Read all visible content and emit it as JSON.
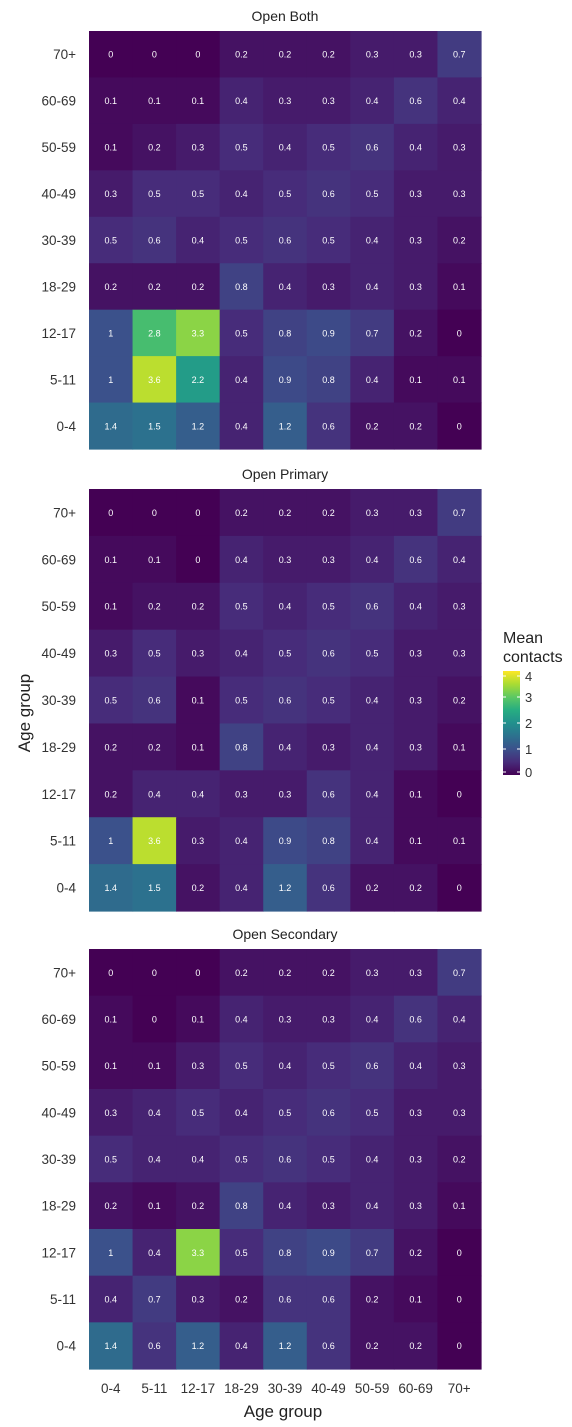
{
  "chart_data": {
    "type": "heatmap",
    "x_categories": [
      "0-4",
      "5-11",
      "12-17",
      "18-29",
      "30-39",
      "40-49",
      "50-59",
      "60-69",
      "70+"
    ],
    "y_categories": [
      "0-4",
      "5-11",
      "12-17",
      "18-29",
      "30-39",
      "40-49",
      "50-59",
      "60-69",
      "70+"
    ],
    "xlabel": "Age group",
    "ylabel": "Age group",
    "legend": {
      "title_lines": [
        "Mean",
        "contacts"
      ],
      "ticks": [
        0,
        1,
        2,
        3,
        4
      ],
      "range": [
        0,
        4
      ],
      "colormap": "viridis",
      "placement": "right"
    },
    "panels": [
      {
        "title": "Open Both",
        "rows": [
          {
            "age": "70+",
            "values": [
              0,
              0,
              0,
              0.2,
              0.2,
              0.2,
              0.3,
              0.3,
              0.7
            ]
          },
          {
            "age": "60-69",
            "values": [
              0.1,
              0.1,
              0.1,
              0.4,
              0.3,
              0.3,
              0.4,
              0.6,
              0.4
            ]
          },
          {
            "age": "50-59",
            "values": [
              0.1,
              0.2,
              0.3,
              0.5,
              0.4,
              0.5,
              0.6,
              0.4,
              0.3
            ]
          },
          {
            "age": "40-49",
            "values": [
              0.3,
              0.5,
              0.5,
              0.4,
              0.5,
              0.6,
              0.5,
              0.3,
              0.3
            ]
          },
          {
            "age": "30-39",
            "values": [
              0.5,
              0.6,
              0.4,
              0.5,
              0.6,
              0.5,
              0.4,
              0.3,
              0.2
            ]
          },
          {
            "age": "18-29",
            "values": [
              0.2,
              0.2,
              0.2,
              0.8,
              0.4,
              0.3,
              0.4,
              0.3,
              0.1
            ]
          },
          {
            "age": "12-17",
            "values": [
              1,
              2.8,
              3.3,
              0.5,
              0.8,
              0.9,
              0.7,
              0.2,
              0
            ]
          },
          {
            "age": "5-11",
            "values": [
              1,
              3.6,
              2.2,
              0.4,
              0.9,
              0.8,
              0.4,
              0.1,
              0.1
            ]
          },
          {
            "age": "0-4",
            "values": [
              1.4,
              1.5,
              1.2,
              0.4,
              1.2,
              0.6,
              0.2,
              0.2,
              0
            ]
          }
        ]
      },
      {
        "title": "Open Primary",
        "rows": [
          {
            "age": "70+",
            "values": [
              0,
              0,
              0,
              0.2,
              0.2,
              0.2,
              0.3,
              0.3,
              0.7
            ]
          },
          {
            "age": "60-69",
            "values": [
              0.1,
              0.1,
              0,
              0.4,
              0.3,
              0.3,
              0.4,
              0.6,
              0.4
            ]
          },
          {
            "age": "50-59",
            "values": [
              0.1,
              0.2,
              0.2,
              0.5,
              0.4,
              0.5,
              0.6,
              0.4,
              0.3
            ]
          },
          {
            "age": "40-49",
            "values": [
              0.3,
              0.5,
              0.3,
              0.4,
              0.5,
              0.6,
              0.5,
              0.3,
              0.3
            ]
          },
          {
            "age": "30-39",
            "values": [
              0.5,
              0.6,
              0.1,
              0.5,
              0.6,
              0.5,
              0.4,
              0.3,
              0.2
            ]
          },
          {
            "age": "18-29",
            "values": [
              0.2,
              0.2,
              0.1,
              0.8,
              0.4,
              0.3,
              0.4,
              0.3,
              0.1
            ]
          },
          {
            "age": "12-17",
            "values": [
              0.2,
              0.4,
              0.4,
              0.3,
              0.3,
              0.6,
              0.4,
              0.1,
              0
            ]
          },
          {
            "age": "5-11",
            "values": [
              1,
              3.6,
              0.3,
              0.4,
              0.9,
              0.8,
              0.4,
              0.1,
              0.1
            ]
          },
          {
            "age": "0-4",
            "values": [
              1.4,
              1.5,
              0.2,
              0.4,
              1.2,
              0.6,
              0.2,
              0.2,
              0
            ]
          }
        ]
      },
      {
        "title": "Open Secondary",
        "rows": [
          {
            "age": "70+",
            "values": [
              0,
              0,
              0,
              0.2,
              0.2,
              0.2,
              0.3,
              0.3,
              0.7
            ]
          },
          {
            "age": "60-69",
            "values": [
              0.1,
              0,
              0.1,
              0.4,
              0.3,
              0.3,
              0.4,
              0.6,
              0.4
            ]
          },
          {
            "age": "50-59",
            "values": [
              0.1,
              0.1,
              0.3,
              0.5,
              0.4,
              0.5,
              0.6,
              0.4,
              0.3
            ]
          },
          {
            "age": "40-49",
            "values": [
              0.3,
              0.4,
              0.5,
              0.4,
              0.5,
              0.6,
              0.5,
              0.3,
              0.3
            ]
          },
          {
            "age": "30-39",
            "values": [
              0.5,
              0.4,
              0.4,
              0.5,
              0.6,
              0.5,
              0.4,
              0.3,
              0.2
            ]
          },
          {
            "age": "18-29",
            "values": [
              0.2,
              0.1,
              0.2,
              0.8,
              0.4,
              0.3,
              0.4,
              0.3,
              0.1
            ]
          },
          {
            "age": "12-17",
            "values": [
              1,
              0.4,
              3.3,
              0.5,
              0.8,
              0.9,
              0.7,
              0.2,
              0
            ]
          },
          {
            "age": "5-11",
            "values": [
              0.4,
              0.7,
              0.3,
              0.2,
              0.6,
              0.6,
              0.2,
              0.1,
              0
            ]
          },
          {
            "age": "0-4",
            "values": [
              1.4,
              0.6,
              1.2,
              0.4,
              1.2,
              0.6,
              0.2,
              0.2,
              0
            ]
          }
        ]
      }
    ]
  }
}
